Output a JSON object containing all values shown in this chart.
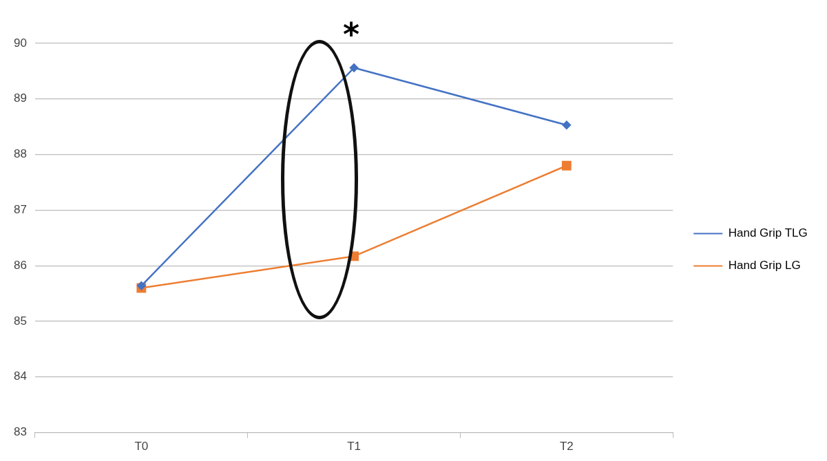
{
  "chart_data": {
    "type": "line",
    "categories": [
      "T0",
      "T1",
      "T2"
    ],
    "series": [
      {
        "name": "Hand Grip TLG",
        "color": "#4472c4",
        "marker": "diamond",
        "values": [
          85.64,
          89.56,
          88.53
        ]
      },
      {
        "name": "Hand Grip LG",
        "color": "#ed7d31",
        "marker": "square",
        "values": [
          85.6,
          86.17,
          87.8
        ]
      }
    ],
    "ylim": [
      83,
      90
    ],
    "yticks": [
      83,
      84,
      85,
      86,
      87,
      88,
      89,
      90
    ],
    "grid": "y",
    "legend": "right",
    "annotations": [
      "*"
    ]
  }
}
